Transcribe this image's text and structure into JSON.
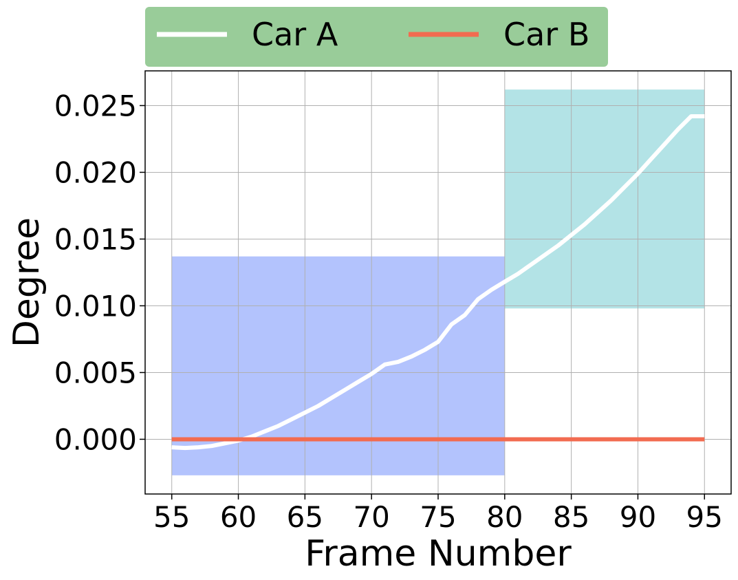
{
  "chart_data": {
    "type": "line",
    "xlabel": "Frame Number",
    "ylabel": "Degree",
    "xlim": [
      53,
      97
    ],
    "ylim": [
      -0.0041,
      0.0276
    ],
    "xticks": [
      "55",
      "60",
      "65",
      "70",
      "75",
      "80",
      "85",
      "90",
      "95"
    ],
    "yticks": [
      "0.000",
      "0.005",
      "0.010",
      "0.015",
      "0.020",
      "0.025"
    ],
    "grid": true,
    "legend_position": "top-center",
    "legend_background": "#99cc99",
    "shaded_regions": [
      {
        "x": [
          55,
          80
        ],
        "y": [
          -0.0027,
          0.0137
        ],
        "color": "#b3c3fd"
      },
      {
        "x": [
          80,
          95
        ],
        "y": [
          0.0098,
          0.0262
        ],
        "color": "#b3e3e6"
      }
    ],
    "series": [
      {
        "name": "Car A",
        "color": "#ffffff",
        "x": [
          55,
          56,
          57,
          58,
          59,
          60,
          61,
          62,
          63,
          64,
          65,
          66,
          67,
          68,
          69,
          70,
          71,
          72,
          73,
          74,
          75,
          76,
          77,
          78,
          79,
          80,
          81,
          82,
          83,
          84,
          85,
          86,
          87,
          88,
          89,
          90,
          91,
          92,
          93,
          94,
          95
        ],
        "values": [
          -0.0006,
          -0.00065,
          -0.0006,
          -0.0005,
          -0.0003,
          -0.0001,
          0.0002,
          0.0006,
          0.001,
          0.0015,
          0.002,
          0.0025,
          0.0031,
          0.0037,
          0.0043,
          0.0049,
          0.0056,
          0.0058,
          0.0062,
          0.0067,
          0.0073,
          0.0086,
          0.0093,
          0.0105,
          0.0112,
          0.0118,
          0.0124,
          0.0131,
          0.0138,
          0.0145,
          0.0153,
          0.0161,
          0.017,
          0.0179,
          0.0189,
          0.0199,
          0.021,
          0.0221,
          0.0232,
          0.0242,
          0.0242
        ]
      },
      {
        "name": "Car B",
        "color": "#f26b50",
        "x": [
          55,
          95
        ],
        "values": [
          0.0,
          0.0
        ]
      }
    ]
  }
}
